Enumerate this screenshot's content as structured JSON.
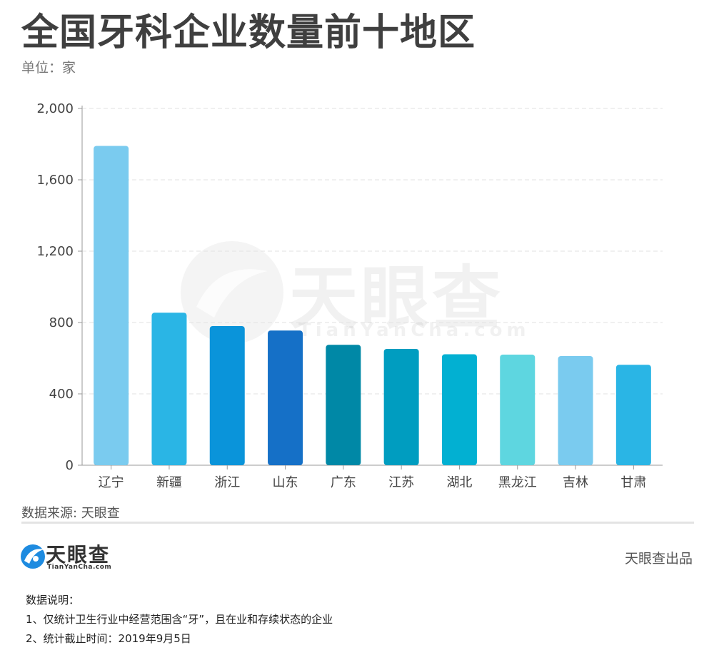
{
  "header": {
    "title": "全国牙科企业数量前十地区",
    "unit": "单位：家"
  },
  "chart_data": {
    "type": "bar",
    "categories": [
      "辽宁",
      "新疆",
      "浙江",
      "山东",
      "广东",
      "江苏",
      "湖北",
      "黑龙江",
      "吉林",
      "甘肃"
    ],
    "values": [
      1790,
      855,
      780,
      755,
      675,
      652,
      622,
      620,
      612,
      563
    ],
    "colors": [
      "#7ACBEF",
      "#2AB5E5",
      "#0A94DA",
      "#1570C7",
      "#0088A6",
      "#009DC0",
      "#02B0D2",
      "#5ED6E0",
      "#7ACBEF",
      "#2AB5E5"
    ],
    "yticks": [
      "0",
      "400",
      "800",
      "1,200",
      "1,600",
      "2,000"
    ],
    "ylim": [
      0,
      2000
    ],
    "grid": true,
    "legend": "none"
  },
  "footer": {
    "source": "数据来源: 天眼查",
    "brand_name": "天眼查",
    "brand_domain": "TianYanCha.com",
    "produced_by": "天眼查出品",
    "notes_title": "数据说明：",
    "note1": "1、仅统计卫生行业中经营范围含“牙”，且在业和存续状态的企业",
    "note2": "2、统计截止时间：2019年9月5日"
  },
  "watermark": {
    "text": "天眼查",
    "domain": "TianYanCha.com"
  },
  "icons": {
    "logo": "tianyancha-logo-icon",
    "watermark": "tianyancha-watermark-icon"
  }
}
